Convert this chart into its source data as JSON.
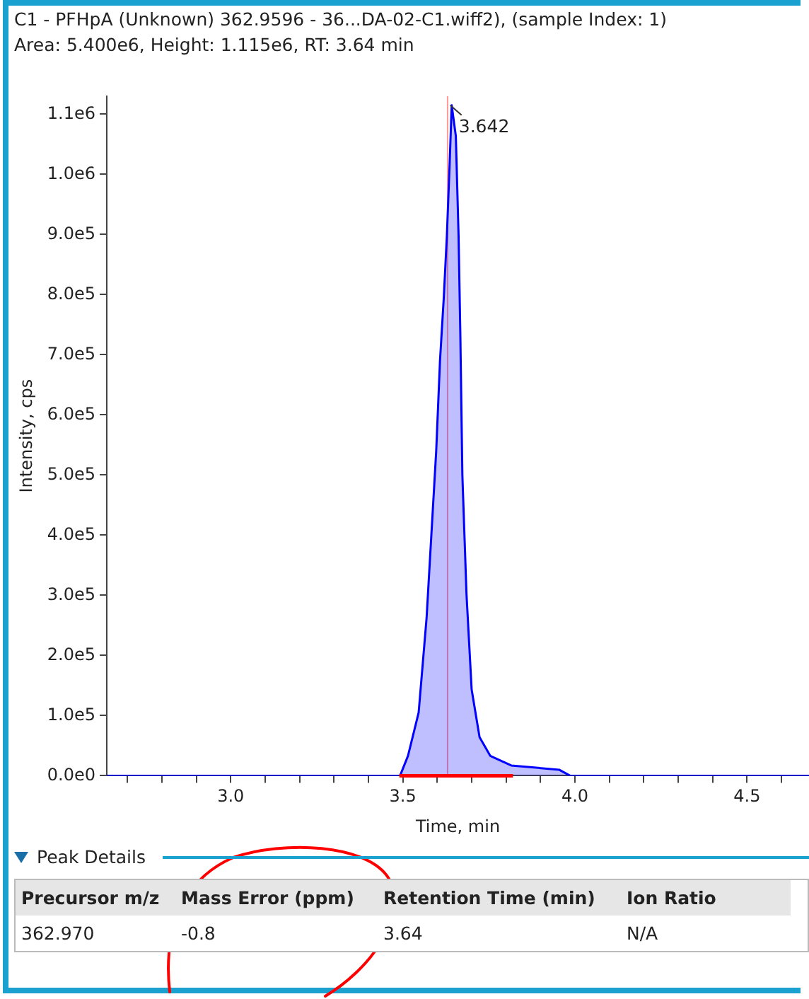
{
  "chart_data": {
    "type": "area",
    "title": "C1 - PFHpA (Unknown) 362.9596 - 36...DA-02-C1.wiff2), (sample Index: 1)",
    "subtitle": "Area: 5.400e6, Height: 1.115e6, RT: 3.64 min",
    "xlabel": "Time, min",
    "ylabel": "Intensity, cps",
    "series": [
      {
        "color": "#0000ff",
        "x": [
          2.64,
          3.0,
          3.4,
          3.492,
          3.515,
          3.546,
          3.569,
          3.585,
          3.597,
          3.608,
          3.619,
          3.628,
          3.636,
          3.642,
          3.654,
          3.662,
          3.667,
          3.673,
          3.685,
          3.7,
          3.723,
          3.754,
          3.815,
          3.954,
          3.986,
          4.3,
          4.68
        ],
        "values": [
          0,
          0,
          0,
          0,
          33000,
          105000,
          262000,
          421000,
          540000,
          690000,
          795000,
          898000,
          1017000,
          1115000,
          1064000,
          898000,
          738000,
          500000,
          302000,
          143000,
          64000,
          33000,
          17000,
          10000,
          0,
          0,
          0
        ]
      },
      {
        "type": "line",
        "color": "#ff0000",
        "x": [
          3.49,
          3.82
        ],
        "values": [
          0,
          0
        ]
      }
    ],
    "xlim": [
      2.64,
      4.68
    ],
    "ylim": [
      0,
      1130000
    ],
    "xticks": [
      {
        "value": 2.7,
        "label": null
      },
      {
        "value": 2.8,
        "label": null
      },
      {
        "value": 2.9,
        "label": null
      },
      {
        "value": 3.0,
        "label": "3.0"
      },
      {
        "value": 3.1,
        "label": null
      },
      {
        "value": 3.2,
        "label": null
      },
      {
        "value": 3.3,
        "label": null
      },
      {
        "value": 3.4,
        "label": null
      },
      {
        "value": 3.5,
        "label": "3.5"
      },
      {
        "value": 3.6,
        "label": null
      },
      {
        "value": 3.7,
        "label": null
      },
      {
        "value": 3.8,
        "label": null
      },
      {
        "value": 3.9,
        "label": null
      },
      {
        "value": 4.0,
        "label": "4.0"
      },
      {
        "value": 4.1,
        "label": null
      },
      {
        "value": 4.2,
        "label": null
      },
      {
        "value": 4.3,
        "label": null
      },
      {
        "value": 4.4,
        "label": null
      },
      {
        "value": 4.5,
        "label": "4.5"
      },
      {
        "value": 4.6,
        "label": null
      }
    ],
    "yticks": [
      {
        "value": 0,
        "label": "0.0e0"
      },
      {
        "value": 100000,
        "label": "1.0e5"
      },
      {
        "value": 200000,
        "label": "2.0e5"
      },
      {
        "value": 300000,
        "label": "3.0e5"
      },
      {
        "value": 400000,
        "label": "4.0e5"
      },
      {
        "value": 500000,
        "label": "5.0e5"
      },
      {
        "value": 600000,
        "label": "6.0e5"
      },
      {
        "value": 700000,
        "label": "7.0e5"
      },
      {
        "value": 800000,
        "label": "8.0e5"
      },
      {
        "value": 900000,
        "label": "9.0e5"
      },
      {
        "value": 1000000,
        "label": "1.0e6"
      },
      {
        "value": 1100000,
        "label": "1.1e6"
      }
    ],
    "ref_lines": [
      {
        "axis": "x",
        "value": 3.63,
        "color": "#ff9999"
      }
    ],
    "annotations": [
      {
        "text": "3.642",
        "x": 3.642,
        "y": 1115000
      },
      "Peak Details",
      "Precursor m/z",
      "Mass Error (ppm)",
      "Retention Time (min)",
      "Ion Ratio",
      "362.970",
      "-0.8",
      "3.64",
      "N/A"
    ]
  }
}
